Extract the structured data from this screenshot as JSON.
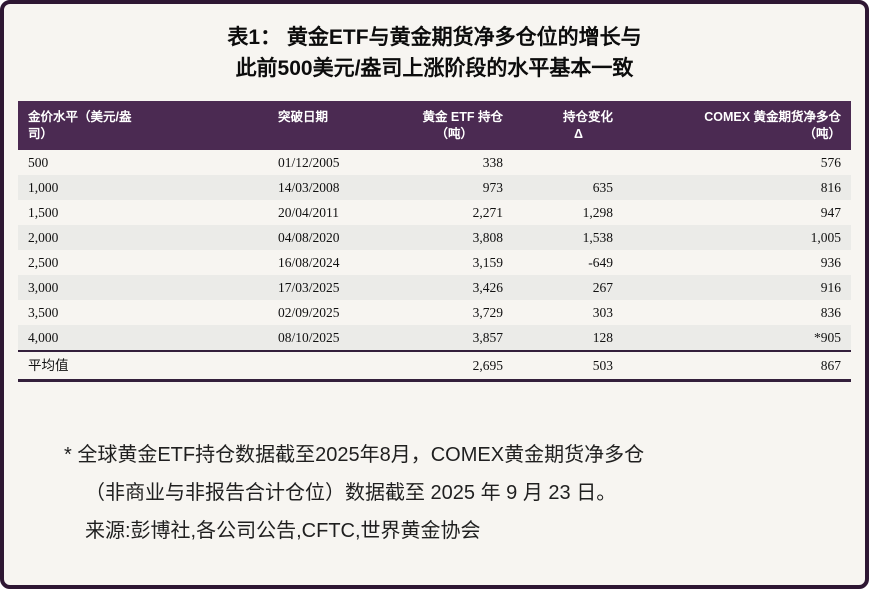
{
  "title": {
    "line1": "表1：  黄金ETF与黄金期货净多仓位的增长与",
    "line2": "此前500美元/盎司上涨阶段的水平基本一致"
  },
  "table_header": {
    "col1_line1": "金价水平（美元/盎",
    "col1_line2": "司）",
    "col2_line1": "突破日期",
    "col3_line1": "黄金 ETF 持仓",
    "col3_line2": "（吨）",
    "col4_line1": "持仓变化",
    "col4_line2": "Δ",
    "col5_line1": "COMEX 黄金期货净多仓",
    "col5_line2": "（吨）"
  },
  "chart_data": {
    "type": "table",
    "title": "表1：黄金ETF与黄金期货净多仓位的增长与此前500美元/盎司上涨阶段的水平基本一致",
    "columns": [
      "金价水平（美元/盎司）",
      "突破日期",
      "黄金 ETF 持仓（吨）",
      "持仓变化 Δ",
      "COMEX 黄金期货净多仓（吨）"
    ],
    "rows": [
      [
        "500",
        "01/12/2005",
        "338",
        "",
        "576"
      ],
      [
        "1,000",
        "14/03/2008",
        "973",
        "635",
        "816"
      ],
      [
        "1,500",
        "20/04/2011",
        "2,271",
        "1,298",
        "947"
      ],
      [
        "2,000",
        "04/08/2020",
        "3,808",
        "1,538",
        "1,005"
      ],
      [
        "2,500",
        "16/08/2024",
        "3,159",
        "-649",
        "936"
      ],
      [
        "3,000",
        "17/03/2025",
        "3,426",
        "267",
        "916"
      ],
      [
        "3,500",
        "02/09/2025",
        "3,729",
        "303",
        "836"
      ],
      [
        "4,000",
        "08/10/2025",
        "3,857",
        "128",
        "*905"
      ]
    ],
    "average_row": [
      "平均值",
      "",
      "2,695",
      "503",
      "867"
    ]
  },
  "footnote": {
    "line1": "* 全球黄金ETF持仓数据截至2025年8月，COMEX黄金期货净多仓",
    "line2": "（非商业与非报告合计仓位）数据截至 2025 年 9 月 23 日。",
    "line3": "来源:彭博社,各公司公告,CFTC,世界黄金协会"
  },
  "colors": {
    "header_bg": "#4b2a52",
    "border_dark": "#2e1733",
    "row_alt": "#ebebe8"
  }
}
